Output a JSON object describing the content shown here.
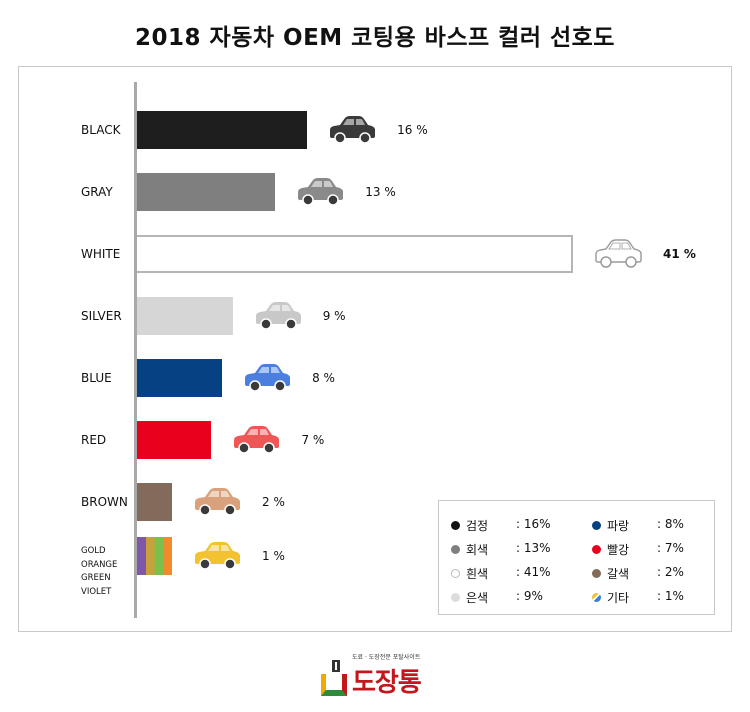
{
  "title": "2018 자동차 OEM 코팅용 바스프 컬러 선호도",
  "chart_data": {
    "type": "bar",
    "orientation": "horizontal",
    "title": "2018 자동차 OEM 코팅용 바스프 컬러 선호도",
    "categories": [
      "BLACK",
      "GRAY",
      "WHITE",
      "SILVER",
      "BLUE",
      "RED",
      "BROWN",
      "GOLD ORANGE GREEN VIOLET"
    ],
    "values": [
      16,
      13,
      41,
      9,
      8,
      7,
      2,
      1
    ],
    "value_labels": [
      "16 %",
      "13 %",
      "41 %",
      "9 %",
      "8 %",
      "7 %",
      "2 %",
      "1 %"
    ],
    "multi_label_lines": [
      "GOLD",
      "ORANGE",
      "GREEN",
      "VIOLET"
    ],
    "colors": [
      "#1e1e1e",
      "#7f7f7f",
      "#ffffff",
      "#d6d6d6",
      "#064283",
      "#e8001c",
      "#826b5a",
      "multi"
    ],
    "stripe_colors": [
      "#7e57a8",
      "#c8a13c",
      "#7cbf4b",
      "#f08a2a"
    ],
    "car_colors": [
      "#3a3a3a",
      "#8a8a8a",
      "#ffffff",
      "#c8c8c8",
      "#4a7fe0",
      "#ef5757",
      "#d9a27c",
      "#f2c230"
    ],
    "highlight_index": 2,
    "grid": false
  },
  "legend": [
    {
      "name": "검정",
      "value": ": 16%",
      "color": "#111111"
    },
    {
      "name": "회색",
      "value": ": 13%",
      "color": "#7f7f7f"
    },
    {
      "name": "흰색",
      "value": ": 41%",
      "color": "#ffffff"
    },
    {
      "name": "은색",
      "value": ": 9%",
      "color": "#dcdcdc"
    },
    {
      "name": "파랑",
      "value": ": 8%",
      "color": "#064283"
    },
    {
      "name": "빨강",
      "value": ": 7%",
      "color": "#e8001c"
    },
    {
      "name": "갈색",
      "value": ": 2%",
      "color": "#826b5a"
    },
    {
      "name": "기타",
      "value": ": 1%",
      "color": "multi"
    }
  ],
  "logo": {
    "tagline": "도료 · 도장전문 포탈사이트",
    "name": "도장통"
  }
}
